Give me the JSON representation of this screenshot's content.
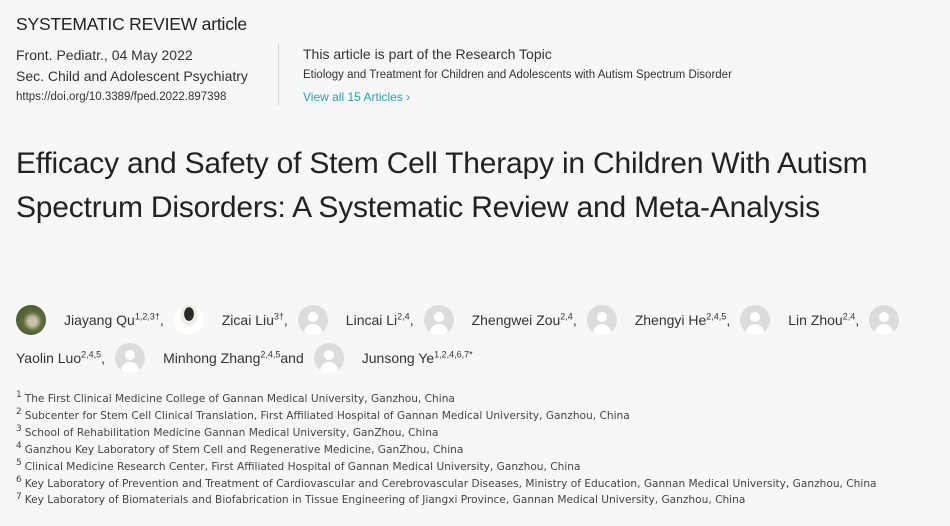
{
  "article_type": "SYSTEMATIC REVIEW article",
  "meta": {
    "journal_date": "Front. Pediatr., 04 May 2022",
    "section": "Sec. Child and Adolescent Psychiatry",
    "doi": "https://doi.org/10.3389/fped.2022.897398"
  },
  "research_topic": {
    "intro": "This article is part of the Research Topic",
    "name": "Etiology and Treatment for Children and Adolescents with Autism Spectrum Disorder",
    "view_all": "View all 15 Articles",
    "view_all_icon": "chevron-right-icon",
    "link_color": "#1fa3b5"
  },
  "title": "Efficacy and Safety of Stem Cell Therapy in Children With Autism Spectrum Disorders: A Systematic Review and Meta-Analysis",
  "authors": [
    {
      "name": "Jiayang Qu",
      "sup": "1,2,3†",
      "sep": ","
    },
    {
      "name": "Zicai Liu",
      "sup": "3†",
      "sep": ","
    },
    {
      "name": "Lincai Li",
      "sup": "2,4",
      "sep": ","
    },
    {
      "name": "Zhengwei Zou",
      "sup": "2,4",
      "sep": ","
    },
    {
      "name": "Zhengyi He",
      "sup": "2,4,5",
      "sep": ","
    },
    {
      "name": "Lin Zhou",
      "sup": "2,4",
      "sep": ","
    },
    {
      "name": "Yaolin Luo",
      "sup": "2,4,5",
      "sep": ","
    },
    {
      "name": "Minhong Zhang",
      "sup": "2,4,5",
      "sep": " and"
    },
    {
      "name": "Junsong Ye",
      "sup": "1,2,4,6,7*",
      "sep": ""
    }
  ],
  "affiliations": [
    {
      "n": "1",
      "text": "The First Clinical Medicine College of Gannan Medical University, Ganzhou, China"
    },
    {
      "n": "2",
      "text": "Subcenter for Stem Cell Clinical Translation, First Affiliated Hospital of Gannan Medical University, Ganzhou, China"
    },
    {
      "n": "3",
      "text": "School of Rehabilitation Medicine Gannan Medical University, GanZhou, China"
    },
    {
      "n": "4",
      "text": "Ganzhou Key Laboratory of Stem Cell and Regenerative Medicine, GanZhou, China"
    },
    {
      "n": "5",
      "text": "Clinical Medicine Research Center, First Affiliated Hospital of Gannan Medical University, Ganzhou, China"
    },
    {
      "n": "6",
      "text": "Key Laboratory of Prevention and Treatment of Cardiovascular and Cerebrovascular Diseases, Ministry of Education, Gannan Medical University, Ganzhou, China"
    },
    {
      "n": "7",
      "text": "Key Laboratory of Biomaterials and Biofabrication in Tissue Engineering of Jiangxi Province, Gannan Medical University, Ganzhou, China"
    }
  ]
}
